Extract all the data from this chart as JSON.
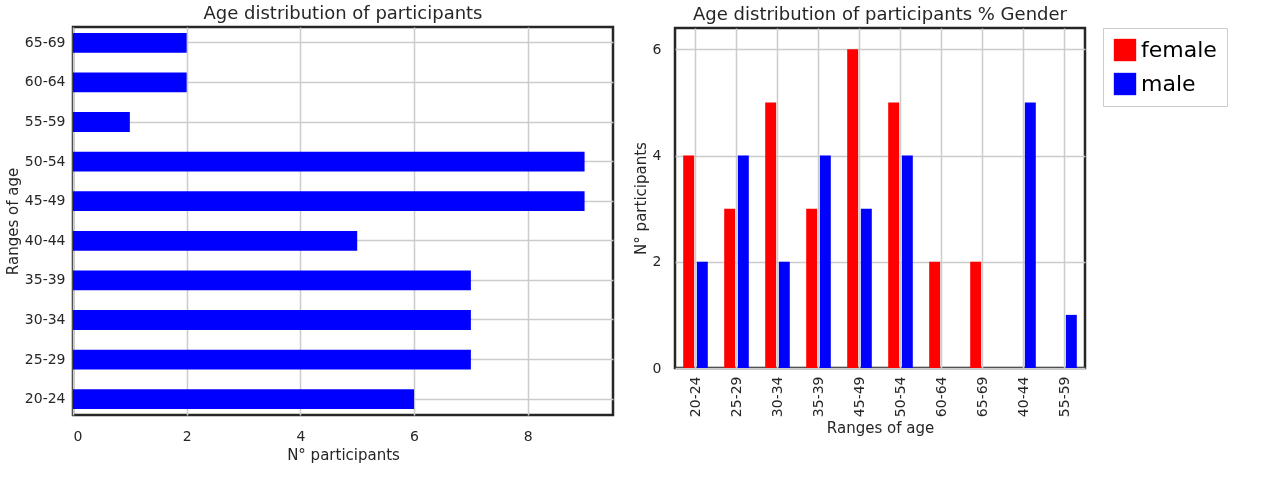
{
  "chart_data": [
    {
      "type": "bar",
      "orientation": "horizontal",
      "title": "Age distribution of participants",
      "xlabel": "N° participants",
      "ylabel": "Ranges of age",
      "categories": [
        "65-69",
        "60-64",
        "55-59",
        "50-54",
        "45-49",
        "40-44",
        "35-39",
        "30-34",
        "25-29",
        "20-24"
      ],
      "values": [
        2,
        2,
        1,
        9,
        9,
        5,
        7,
        7,
        7,
        6
      ],
      "color": "#0000ff",
      "xlim": [
        0,
        9.5
      ],
      "xticks": [
        0,
        2,
        4,
        6,
        8
      ],
      "grid": true
    },
    {
      "type": "bar",
      "title": "Age distribution of participants % Gender",
      "xlabel": "Ranges of age",
      "ylabel": "N° participants",
      "categories": [
        "20-24",
        "25-29",
        "30-34",
        "35-39",
        "45-49",
        "50-54",
        "60-64",
        "65-69",
        "40-44",
        "55-59"
      ],
      "series": [
        {
          "name": "female",
          "color": "#ff0000",
          "values": [
            4,
            3,
            5,
            3,
            6,
            5,
            2,
            2,
            0,
            0
          ]
        },
        {
          "name": "male",
          "color": "#0000ff",
          "values": [
            2,
            4,
            2,
            4,
            3,
            4,
            0,
            0,
            5,
            1
          ]
        }
      ],
      "ylim": [
        0,
        6.4
      ],
      "yticks": [
        0,
        2,
        4,
        6
      ],
      "grid": true,
      "legend": "right"
    }
  ]
}
